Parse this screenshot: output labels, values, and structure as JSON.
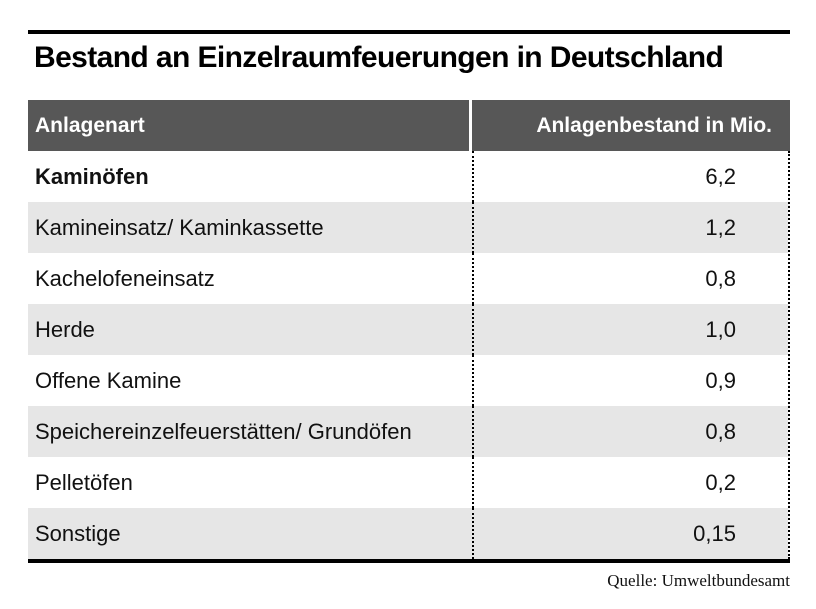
{
  "page": {
    "title": "Bestand an Einzelraumfeuerungen in Deutschland",
    "source": "Quelle: Umweltbundesamt"
  },
  "table": {
    "columns": [
      "Anlagenart",
      "Anlagenbestand in Mio."
    ],
    "rows": [
      {
        "label": "Kaminöfen",
        "value": "6,2",
        "bold": true
      },
      {
        "label": "Kamineinsatz/ Kaminkassette",
        "value": "1,2",
        "bold": false
      },
      {
        "label": "Kachelofeneinsatz",
        "value": "0,8",
        "bold": false
      },
      {
        "label": "Herde",
        "value": "1,0",
        "bold": false
      },
      {
        "label": "Offene Kamine",
        "value": "0,9",
        "bold": false
      },
      {
        "label": "Speichereinzelfeuerstätten/ Grundöfen",
        "value": "0,8",
        "bold": false
      },
      {
        "label": "Pelletöfen",
        "value": "0,2",
        "bold": false
      },
      {
        "label": "Sonstige",
        "value": "0,15",
        "bold": false
      }
    ]
  },
  "colors": {
    "header_bg": "#575757",
    "header_text": "#ffffff",
    "row_bg": "#ffffff",
    "row_alt_bg": "#e6e6e6",
    "rule": "#000000"
  },
  "chart_data": {
    "type": "table",
    "title": "Bestand an Einzelraumfeuerungen in Deutschland",
    "columns": [
      "Anlagenart",
      "Anlagenbestand in Mio."
    ],
    "categories": [
      "Kaminöfen",
      "Kamineinsatz/ Kaminkassette",
      "Kachelofeneinsatz",
      "Herde",
      "Offene Kamine",
      "Speichereinzelfeuerstätten/ Grundöfen",
      "Pelletöfen",
      "Sonstige"
    ],
    "values": [
      6.2,
      1.2,
      0.8,
      1.0,
      0.9,
      0.8,
      0.2,
      0.15
    ],
    "unit": "Mio.",
    "source": "Quelle: Umweltbundesamt"
  }
}
